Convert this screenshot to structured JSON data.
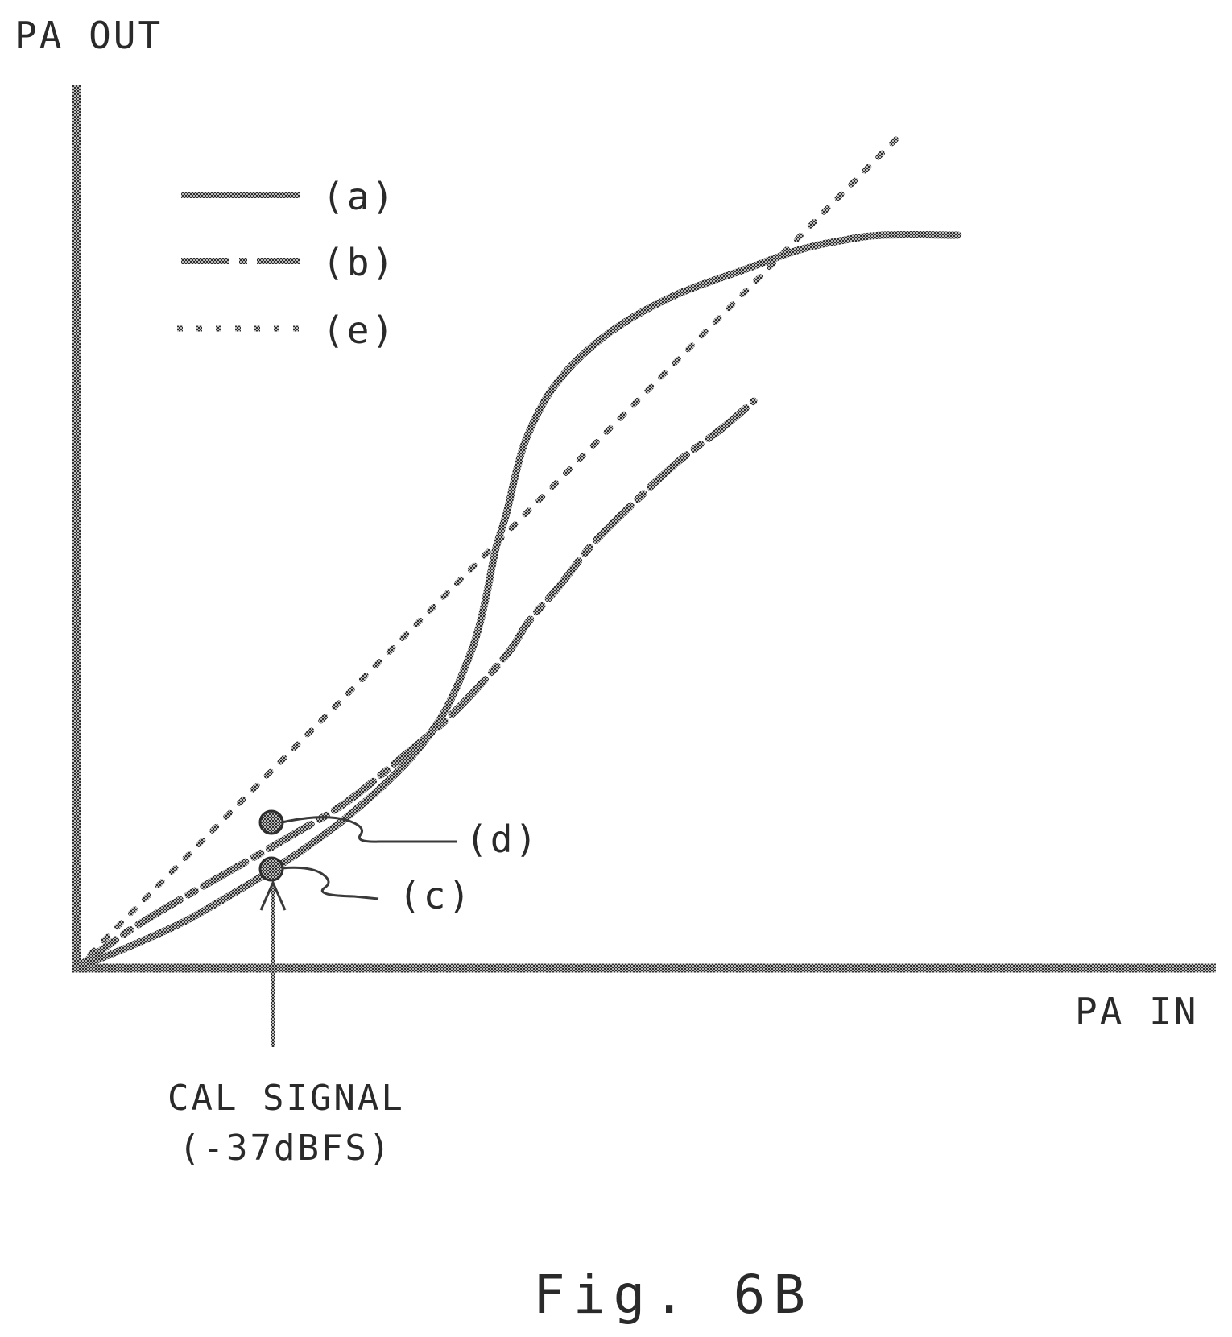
{
  "chart_data": {
    "type": "line",
    "xlabel": "PA IN",
    "ylabel": "PA OUT",
    "caption": "Fig. 6B",
    "xlim": [
      0,
      100
    ],
    "ylim": [
      0,
      100
    ],
    "grid": false,
    "legend_position": "top-left",
    "series": [
      {
        "name": "(a)",
        "style": "solid",
        "points": [
          [
            0,
            0
          ],
          [
            5,
            2.7
          ],
          [
            10,
            5.7
          ],
          [
            15,
            9.5
          ],
          [
            20,
            13.6
          ],
          [
            25,
            18.4
          ],
          [
            30,
            24.3
          ],
          [
            33,
            29
          ],
          [
            35,
            33.5
          ],
          [
            37,
            40
          ],
          [
            38,
            45
          ],
          [
            39,
            51.5
          ],
          [
            40,
            55.9
          ],
          [
            41,
            61.5
          ],
          [
            42,
            65.6
          ],
          [
            44,
            70.7
          ],
          [
            47,
            75.3
          ],
          [
            51,
            79.4
          ],
          [
            56,
            82.9
          ],
          [
            62,
            85.8
          ],
          [
            67,
            88.2
          ],
          [
            71,
            89.4
          ],
          [
            75,
            90.1
          ],
          [
            82,
            90.1
          ]
        ]
      },
      {
        "name": "(b)",
        "style": "dash-dot",
        "points": [
          [
            0,
            0
          ],
          [
            5,
            4.7
          ],
          [
            10,
            8.7
          ],
          [
            15,
            12.5
          ],
          [
            20,
            16.3
          ],
          [
            25,
            20.3
          ],
          [
            30,
            25.6
          ],
          [
            35,
            31.3
          ],
          [
            40,
            38.5
          ],
          [
            42,
            42.5
          ],
          [
            45,
            47.1
          ],
          [
            48,
            52.1
          ],
          [
            52,
            57.4
          ],
          [
            56,
            62.3
          ],
          [
            60,
            66.3
          ],
          [
            63,
            69.7
          ]
        ]
      },
      {
        "name": "(e)",
        "style": "dotted",
        "points": [
          [
            0,
            0
          ],
          [
            76.3,
            102
          ]
        ]
      }
    ],
    "annotations": [
      {
        "label": "(c)",
        "series": "(a)",
        "x": 17,
        "y": 11.1
      },
      {
        "label": "(d)",
        "series": "(b)",
        "x": 17,
        "y": 14.7
      },
      {
        "text_lines": [
          "CAL SIGNAL",
          "(-37dBFS)"
        ],
        "x": 17
      }
    ],
    "colors": {
      "ink": "#3a3a3a",
      "text": "#2a2a2a",
      "background": "#ffffff"
    }
  }
}
